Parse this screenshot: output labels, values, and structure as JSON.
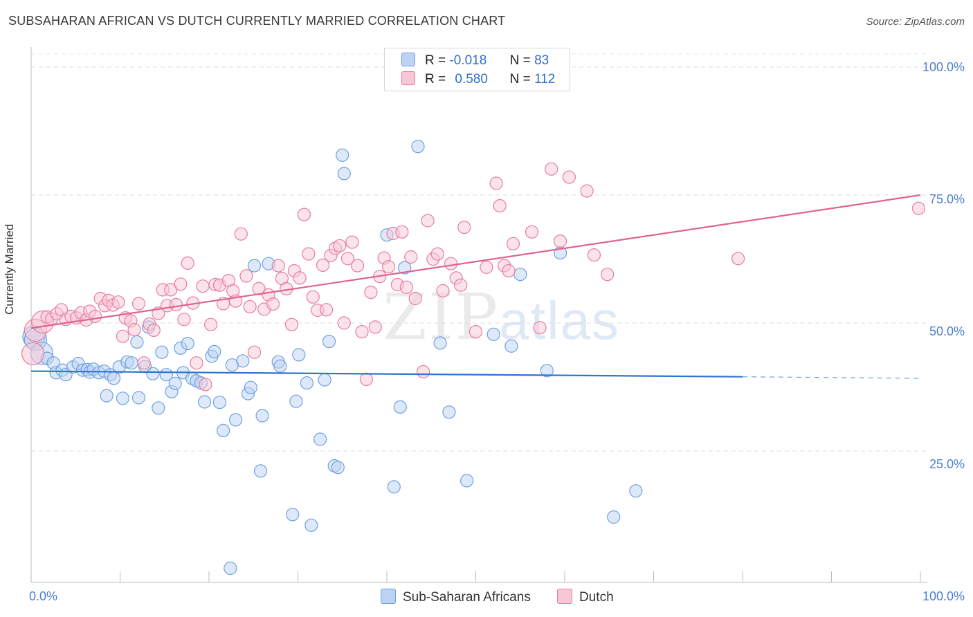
{
  "title": "SUBSAHARAN AFRICAN VS DUTCH CURRENTLY MARRIED CORRELATION CHART",
  "source": "Source: ZipAtlas.com",
  "watermark": {
    "zip": "ZIP",
    "atlas": "atlas"
  },
  "legend": {
    "r_label": "R =",
    "n_label": "N =",
    "series": [
      {
        "name": "Sub-Saharan Africans",
        "r": "-0.018",
        "n": "83",
        "color": "#6fa0e0",
        "fill": "#bcd3f3"
      },
      {
        "name": "Dutch",
        "r": "0.580",
        "n": "112",
        "color": "#e87ca0",
        "fill": "#f8c7d6"
      }
    ]
  },
  "axes": {
    "x_min_label": "0.0%",
    "x_max_label": "100.0%",
    "ylabel": "Currently Married",
    "y_ticks": [
      "100.0%",
      "75.0%",
      "50.0%",
      "25.0%"
    ]
  },
  "chart_data": {
    "type": "scatter",
    "title": "SUBSAHARAN AFRICAN VS DUTCH CURRENTLY MARRIED CORRELATION CHART",
    "xlabel": "",
    "ylabel": "Currently Married",
    "xlim": [
      0,
      100
    ],
    "ylim": [
      0,
      100
    ],
    "y_ticks": [
      25,
      50,
      75,
      100
    ],
    "series": [
      {
        "name": "Sub-Saharan Africans",
        "color": "#6fa0e0",
        "trend": {
          "x": [
            0,
            80
          ],
          "y": [
            40.6,
            39.5
          ],
          "dashed_to": [
            100,
            39.2
          ]
        },
        "points": [
          [
            0.3,
            47.3
          ],
          [
            0.5,
            46.8
          ],
          [
            1.2,
            44.1
          ],
          [
            1.8,
            43.1
          ],
          [
            2.5,
            42.2
          ],
          [
            2.8,
            40.3
          ],
          [
            3.5,
            40.8
          ],
          [
            3.9,
            39.9
          ],
          [
            4.7,
            41.4
          ],
          [
            5.3,
            42.1
          ],
          [
            5.8,
            40.8
          ],
          [
            6.3,
            40.9
          ],
          [
            6.6,
            40.4
          ],
          [
            7.0,
            41.0
          ],
          [
            7.6,
            40.3
          ],
          [
            8.2,
            40.6
          ],
          [
            8.5,
            35.8
          ],
          [
            8.9,
            39.9
          ],
          [
            9.3,
            39.2
          ],
          [
            9.9,
            41.4
          ],
          [
            10.3,
            35.3
          ],
          [
            10.8,
            42.4
          ],
          [
            11.3,
            42.2
          ],
          [
            11.9,
            46.3
          ],
          [
            12.1,
            35.4
          ],
          [
            12.8,
            41.5
          ],
          [
            13.2,
            49.2
          ],
          [
            13.7,
            40.1
          ],
          [
            14.3,
            33.4
          ],
          [
            14.7,
            44.3
          ],
          [
            15.2,
            39.9
          ],
          [
            15.8,
            36.6
          ],
          [
            16.2,
            38.2
          ],
          [
            16.8,
            45.1
          ],
          [
            17.1,
            40.3
          ],
          [
            17.6,
            46.0
          ],
          [
            18.1,
            39.2
          ],
          [
            18.6,
            38.7
          ],
          [
            19.1,
            38.3
          ],
          [
            19.5,
            34.6
          ],
          [
            20.3,
            43.5
          ],
          [
            20.6,
            44.4
          ],
          [
            21.2,
            34.5
          ],
          [
            21.6,
            29.0
          ],
          [
            22.4,
            2.1
          ],
          [
            22.6,
            41.8
          ],
          [
            23.0,
            31.1
          ],
          [
            23.8,
            42.6
          ],
          [
            24.4,
            36.2
          ],
          [
            24.7,
            37.4
          ],
          [
            25.1,
            61.2
          ],
          [
            25.8,
            21.1
          ],
          [
            26.0,
            31.9
          ],
          [
            26.7,
            61.6
          ],
          [
            27.8,
            42.4
          ],
          [
            28.0,
            41.6
          ],
          [
            29.4,
            12.6
          ],
          [
            29.8,
            34.7
          ],
          [
            30.1,
            43.8
          ],
          [
            31.0,
            38.3
          ],
          [
            31.5,
            10.5
          ],
          [
            32.5,
            27.3
          ],
          [
            33.0,
            38.9
          ],
          [
            33.5,
            46.4
          ],
          [
            34.1,
            22.1
          ],
          [
            34.5,
            21.8
          ],
          [
            35.0,
            82.8
          ],
          [
            35.2,
            79.2
          ],
          [
            40.0,
            67.2
          ],
          [
            40.8,
            18.0
          ],
          [
            41.5,
            33.6
          ],
          [
            42.0,
            60.8
          ],
          [
            43.5,
            84.5
          ],
          [
            46.0,
            46.1
          ],
          [
            47.0,
            32.6
          ],
          [
            49.0,
            19.2
          ],
          [
            52.0,
            47.8
          ],
          [
            54.0,
            45.5
          ],
          [
            55.0,
            59.5
          ],
          [
            58.0,
            40.7
          ],
          [
            59.5,
            63.7
          ],
          [
            65.5,
            12.1
          ],
          [
            68.0,
            17.2
          ]
        ]
      },
      {
        "name": "Dutch",
        "color": "#e87ca0",
        "trend": {
          "x": [
            0,
            100
          ],
          "y": [
            49.0,
            75.0
          ]
        },
        "points": [
          [
            0.2,
            44.0
          ],
          [
            0.5,
            48.6
          ],
          [
            1.3,
            50.2
          ],
          [
            1.8,
            51.2
          ],
          [
            2.3,
            50.8
          ],
          [
            2.9,
            51.8
          ],
          [
            3.4,
            52.6
          ],
          [
            3.9,
            50.7
          ],
          [
            4.5,
            51.3
          ],
          [
            5.1,
            51.0
          ],
          [
            5.6,
            52.0
          ],
          [
            6.2,
            50.6
          ],
          [
            6.6,
            52.3
          ],
          [
            7.2,
            51.3
          ],
          [
            7.8,
            54.8
          ],
          [
            8.3,
            53.4
          ],
          [
            8.7,
            54.4
          ],
          [
            9.2,
            53.5
          ],
          [
            9.8,
            54.1
          ],
          [
            10.3,
            47.4
          ],
          [
            10.6,
            51.0
          ],
          [
            11.2,
            50.4
          ],
          [
            11.6,
            48.7
          ],
          [
            12.1,
            53.8
          ],
          [
            12.7,
            42.2
          ],
          [
            13.3,
            49.8
          ],
          [
            13.8,
            48.6
          ],
          [
            14.3,
            51.9
          ],
          [
            14.8,
            56.5
          ],
          [
            15.3,
            53.4
          ],
          [
            15.7,
            56.5
          ],
          [
            16.3,
            53.6
          ],
          [
            16.8,
            57.6
          ],
          [
            17.2,
            50.7
          ],
          [
            17.6,
            61.7
          ],
          [
            18.2,
            53.9
          ],
          [
            18.6,
            42.2
          ],
          [
            19.3,
            57.2
          ],
          [
            19.6,
            38.0
          ],
          [
            20.2,
            49.7
          ],
          [
            20.7,
            57.5
          ],
          [
            21.2,
            57.4
          ],
          [
            21.6,
            53.8
          ],
          [
            22.2,
            58.3
          ],
          [
            22.7,
            56.3
          ],
          [
            23.0,
            54.3
          ],
          [
            23.6,
            67.4
          ],
          [
            24.2,
            59.2
          ],
          [
            24.6,
            53.2
          ],
          [
            25.1,
            44.3
          ],
          [
            25.6,
            56.7
          ],
          [
            26.2,
            52.7
          ],
          [
            26.7,
            55.5
          ],
          [
            27.2,
            53.7
          ],
          [
            27.8,
            61.2
          ],
          [
            28.2,
            58.7
          ],
          [
            28.7,
            56.7
          ],
          [
            29.3,
            49.7
          ],
          [
            29.6,
            60.2
          ],
          [
            30.2,
            58.8
          ],
          [
            30.7,
            71.2
          ],
          [
            31.2,
            63.5
          ],
          [
            31.7,
            55.1
          ],
          [
            32.2,
            52.5
          ],
          [
            32.8,
            61.3
          ],
          [
            33.2,
            52.6
          ],
          [
            33.7,
            63.2
          ],
          [
            34.2,
            64.6
          ],
          [
            34.7,
            65.1
          ],
          [
            35.2,
            50.0
          ],
          [
            35.6,
            62.6
          ],
          [
            36.1,
            65.8
          ],
          [
            36.7,
            61.2
          ],
          [
            37.2,
            48.3
          ],
          [
            37.7,
            39.0
          ],
          [
            38.2,
            56.0
          ],
          [
            38.7,
            49.2
          ],
          [
            39.2,
            59.1
          ],
          [
            39.7,
            62.7
          ],
          [
            40.2,
            61.0
          ],
          [
            40.7,
            67.5
          ],
          [
            41.2,
            57.5
          ],
          [
            41.7,
            67.8
          ],
          [
            42.2,
            57.0
          ],
          [
            42.7,
            62.9
          ],
          [
            43.2,
            54.8
          ],
          [
            44.1,
            40.5
          ],
          [
            44.6,
            70.0
          ],
          [
            45.2,
            62.5
          ],
          [
            45.7,
            63.5
          ],
          [
            46.3,
            56.3
          ],
          [
            47.2,
            61.6
          ],
          [
            47.8,
            58.8
          ],
          [
            48.3,
            57.4
          ],
          [
            48.7,
            68.7
          ],
          [
            50.0,
            48.3
          ],
          [
            51.2,
            60.9
          ],
          [
            52.3,
            77.3
          ],
          [
            52.7,
            72.9
          ],
          [
            53.2,
            61.2
          ],
          [
            53.7,
            60.2
          ],
          [
            54.2,
            65.5
          ],
          [
            56.3,
            67.8
          ],
          [
            57.2,
            49.1
          ],
          [
            58.5,
            80.1
          ],
          [
            59.5,
            66.0
          ],
          [
            60.5,
            78.5
          ],
          [
            62.5,
            75.8
          ],
          [
            63.3,
            63.3
          ],
          [
            64.8,
            59.5
          ],
          [
            79.5,
            62.6
          ],
          [
            99.8,
            72.4
          ]
        ]
      }
    ]
  }
}
